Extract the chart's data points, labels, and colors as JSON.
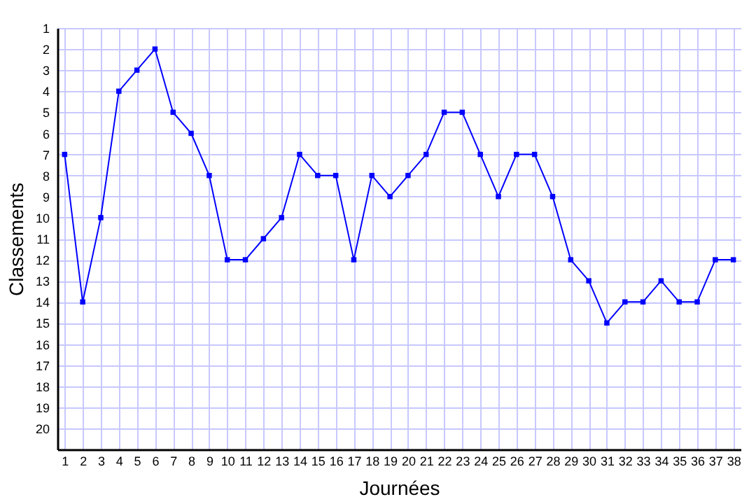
{
  "chart_data": {
    "type": "line",
    "xlabel": "Journées",
    "ylabel": "Classements",
    "x": [
      1,
      2,
      3,
      4,
      5,
      6,
      7,
      8,
      9,
      10,
      11,
      12,
      13,
      14,
      15,
      16,
      17,
      18,
      19,
      20,
      21,
      22,
      23,
      24,
      25,
      26,
      27,
      28,
      29,
      30,
      31,
      32,
      33,
      34,
      35,
      36,
      37,
      38
    ],
    "series": [
      {
        "color": "#0000ff",
        "values": [
          7,
          14,
          10,
          4,
          3,
          2,
          5,
          6,
          8,
          12,
          12,
          11,
          10,
          7,
          8,
          8,
          12,
          8,
          9,
          8,
          7,
          5,
          5,
          7,
          9,
          7,
          7,
          9,
          12,
          13,
          15,
          14,
          14,
          13,
          14,
          14,
          12,
          12
        ]
      }
    ],
    "xlim": [
      0.6,
      38.4
    ],
    "xticks": [
      1,
      2,
      3,
      4,
      5,
      6,
      7,
      8,
      9,
      10,
      11,
      12,
      13,
      14,
      15,
      16,
      17,
      18,
      19,
      20,
      21,
      22,
      23,
      24,
      25,
      26,
      27,
      28,
      29,
      30,
      31,
      32,
      33,
      34,
      35,
      36,
      37,
      38
    ],
    "ylim": [
      21,
      1
    ],
    "yticks": [
      1,
      2,
      3,
      4,
      5,
      6,
      7,
      8,
      9,
      10,
      11,
      12,
      13,
      14,
      15,
      16,
      17,
      18,
      19,
      20
    ],
    "grid": true,
    "marker": "square",
    "line_style": "solid",
    "legend": false
  }
}
